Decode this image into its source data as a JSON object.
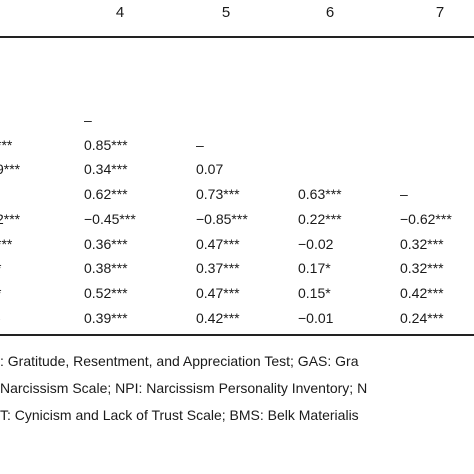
{
  "header": {
    "columns": [
      "4",
      "5",
      "6",
      "7"
    ]
  },
  "table": {
    "rows": [
      {
        "c3": ")",
        "c4": "–",
        "c5": "",
        "c6": "",
        "c7": ""
      },
      {
        "c3": "***",
        "c4": "0.85***",
        "c5": "–",
        "c6": "",
        "c7": ""
      },
      {
        "c3": "9***",
        "c4": "0.34***",
        "c5": "0.07",
        "c6": "",
        "c7": ""
      },
      {
        "c3": ")",
        "c4": "0.62***",
        "c5": "0.73***",
        "c6": "0.63***",
        "c7": "–"
      },
      {
        "c3": "2***",
        "c4": "−0.45***",
        "c5": "−0.85***",
        "c6": "0.22***",
        "c7": "−0.62***"
      },
      {
        "c3": "***",
        "c4": "0.36***",
        "c5": "0.47***",
        "c6": "−0.02",
        "c7": "0.32***"
      },
      {
        "c3": "*",
        "c4": "0.38***",
        "c5": "0.37***",
        "c6": "0.17*",
        "c7": "0.32***"
      },
      {
        "c3": "*",
        "c4": "0.52***",
        "c5": "0.47***",
        "c6": "0.15*",
        "c7": "0.42***"
      },
      {
        "c3": "-",
        "c4": "0.39***",
        "c5": "0.42***",
        "c6": "−0.01",
        "c7": "0.24***"
      }
    ]
  },
  "notes": [
    ": Gratitude, Resentment, and Appreciation Test; GAS: Gra",
    "Narcissism Scale; NPI: Narcissism Personality Inventory; N",
    "T: Cynicism and Lack of Trust Scale; BMS: Belk Materialis"
  ]
}
